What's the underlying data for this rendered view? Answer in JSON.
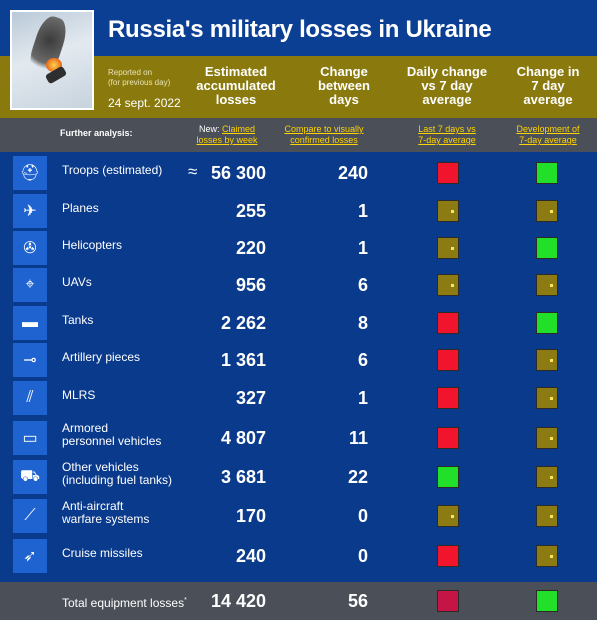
{
  "header": {
    "title": "Russia's military losses in Ukraine",
    "reported_line1": "Reported on",
    "reported_line2": "(for previous day)",
    "date": "24 sept. 2022",
    "col_accum": [
      "Estimated",
      "accumulated",
      "losses"
    ],
    "col_change": [
      "Change",
      "between",
      "days"
    ],
    "col_daily": [
      "Daily change",
      "vs 7 day",
      "average"
    ],
    "col_7day": [
      "Change in",
      "7 day",
      "average"
    ]
  },
  "subheader": {
    "further": "Further analysis:",
    "new_prefix": "New:",
    "claimed_l1": "Claimed",
    "claimed_l2": "losses by week",
    "compare_l1": "Compare to visually",
    "compare_l2": "confirmed losses",
    "last7_l1": "Last 7 days vs",
    "last7_l2": "7-day average",
    "dev_l1": "Development of",
    "dev_l2": "7-day average"
  },
  "rows": [
    {
      "icon": "helmet-icon",
      "label1": "Troops (estimated)",
      "label2": "",
      "approx": "≈",
      "accum": "56 300",
      "change": "240",
      "daily": "red",
      "seven": "green"
    },
    {
      "icon": "plane-icon",
      "label1": "Planes",
      "label2": "",
      "approx": "",
      "accum": "255",
      "change": "1",
      "daily": "amber",
      "seven": "amber"
    },
    {
      "icon": "helicopter-icon",
      "label1": "Helicopters",
      "label2": "",
      "approx": "",
      "accum": "220",
      "change": "1",
      "daily": "amber",
      "seven": "green"
    },
    {
      "icon": "drone-icon",
      "label1": "UAVs",
      "label2": "",
      "approx": "",
      "accum": "956",
      "change": "6",
      "daily": "amber",
      "seven": "amber"
    },
    {
      "icon": "tank-icon",
      "label1": "Tanks",
      "label2": "",
      "approx": "",
      "accum": "2 262",
      "change": "8",
      "daily": "red",
      "seven": "green"
    },
    {
      "icon": "artillery-icon",
      "label1": "Artillery pieces",
      "label2": "",
      "approx": "",
      "accum": "1 361",
      "change": "6",
      "daily": "red",
      "seven": "amber"
    },
    {
      "icon": "mlrs-icon",
      "label1": "MLRS",
      "label2": "",
      "approx": "",
      "accum": "327",
      "change": "1",
      "daily": "red",
      "seven": "amber"
    },
    {
      "icon": "apc-icon",
      "label1": "Armored",
      "label2": "personnel vehicles",
      "approx": "",
      "accum": "4 807",
      "change": "11",
      "daily": "red",
      "seven": "amber"
    },
    {
      "icon": "truck-icon",
      "label1": "Other vehicles",
      "label2": "(including fuel tanks)",
      "approx": "",
      "accum": "3 681",
      "change": "22",
      "daily": "green",
      "seven": "amber"
    },
    {
      "icon": "anti-aircraft-icon",
      "label1": "Anti-aircraft",
      "label2": "warfare systems",
      "approx": "",
      "accum": "170",
      "change": "0",
      "daily": "amber",
      "seven": "amber"
    },
    {
      "icon": "missile-icon",
      "label1": "Cruise missiles",
      "label2": "",
      "approx": "",
      "accum": "240",
      "change": "0",
      "daily": "red",
      "seven": "amber"
    }
  ],
  "total": {
    "label": "Total equipment losses",
    "mark": "*",
    "accum": "14 420",
    "change": "56",
    "daily": "darkred",
    "seven": "green"
  },
  "colors": {
    "background": "#0a3a8c",
    "gold": "#8a7a0e",
    "red": "#f0142c",
    "green": "#22e02a",
    "amber": "#8c7a12",
    "link": "#ffd400"
  }
}
